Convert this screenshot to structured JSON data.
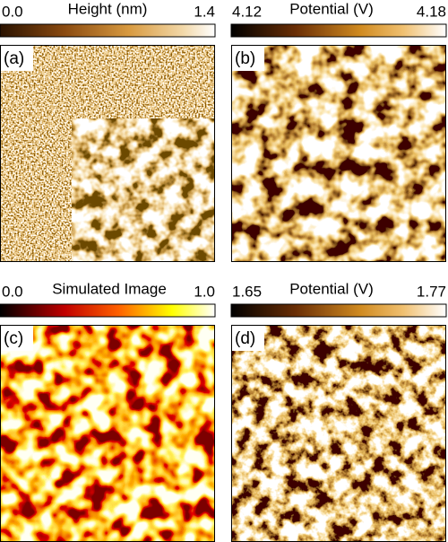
{
  "panels": [
    {
      "label": "(a)",
      "colorbar": {
        "min": "0.0",
        "title": "Height (nm)",
        "max": "1.4"
      }
    },
    {
      "label": "(b)",
      "colorbar": {
        "min": "4.12",
        "title": "Potential (V)",
        "max": "4.18"
      }
    },
    {
      "label": "(c)",
      "colorbar": {
        "min": "0.0",
        "title": "Simulated Image",
        "max": "1.0"
      }
    },
    {
      "label": "(d)",
      "colorbar": {
        "min": "1.65",
        "title": "Potential (V)",
        "max": "1.77"
      }
    }
  ]
}
